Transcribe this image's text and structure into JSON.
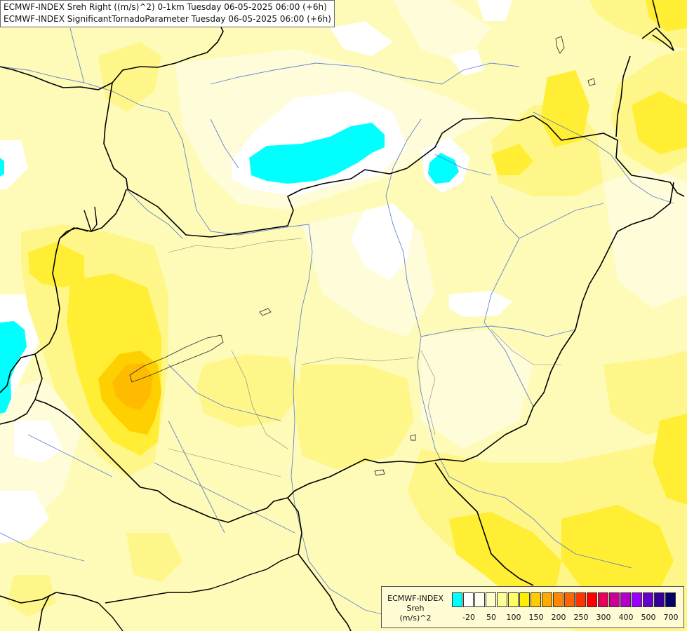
{
  "title": {
    "line1": "ECMWF-INDEX Sreh Right ((m/s)^2) 0-1km Tuesday 06-05-2025 06:00 (+6h)",
    "line2": "ECMWF-INDEX SignificantTornadoParameter Tuesday 06-05-2025 06:00 (+6h)"
  },
  "legend": {
    "line1": "ECMWF-INDEX",
    "line2": "Sreh",
    "line3": "(m/s)^2",
    "colors": [
      "#00FFFF",
      "#FFFFFF",
      "#FFFFF0",
      "#FFFFCC",
      "#FFFF99",
      "#FFFF66",
      "#FFEE00",
      "#FFCC00",
      "#FFAA00",
      "#FF8800",
      "#FF6600",
      "#FF3300",
      "#FF0000",
      "#E6005C",
      "#CC0099",
      "#B300CC",
      "#9900FF",
      "#6600CC",
      "#330099",
      "#000066"
    ],
    "ticks": [
      {
        "label": "-20",
        "index": 1
      },
      {
        "label": "50",
        "index": 3
      },
      {
        "label": "100",
        "index": 5
      },
      {
        "label": "150",
        "index": 7
      },
      {
        "label": "200",
        "index": 9
      },
      {
        "label": "250",
        "index": 11
      },
      {
        "label": "300",
        "index": 13
      },
      {
        "label": "400",
        "index": 15
      },
      {
        "label": "500",
        "index": 17
      },
      {
        "label": "700",
        "index": 19
      }
    ]
  }
}
